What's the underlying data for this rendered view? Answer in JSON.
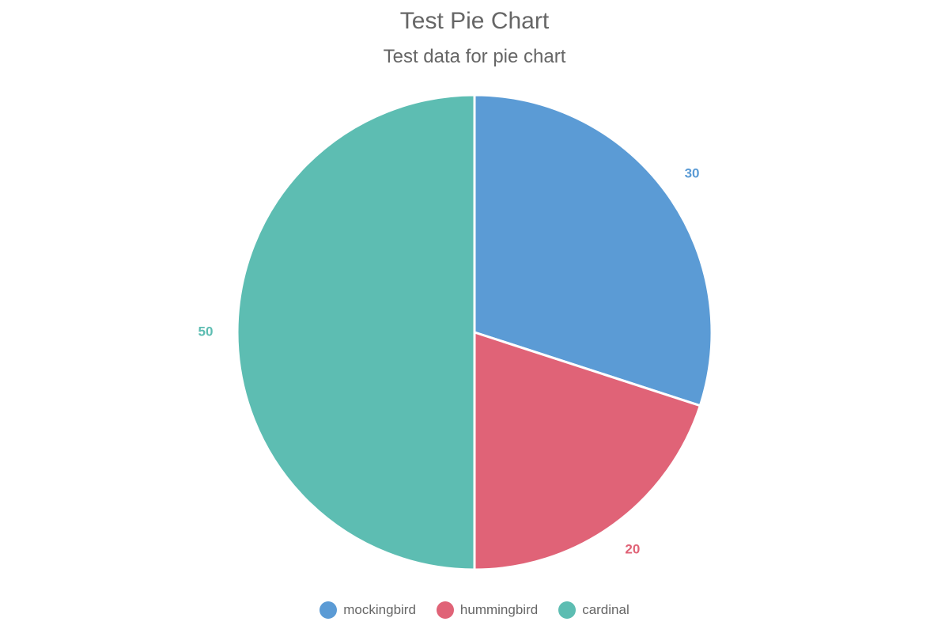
{
  "chart": {
    "type": "pie",
    "title": "Test Pie Chart",
    "title_fontsize": 30,
    "title_color": "#666666",
    "subtitle": "Test data for pie chart",
    "subtitle_fontsize": 24,
    "subtitle_color": "#666666",
    "background_color": "#ffffff",
    "pie_radius": 300,
    "slice_border_color": "#ffffff",
    "slice_border_width": 3,
    "start_angle_deg": 0,
    "direction": "clockwise",
    "slices": [
      {
        "label": "mockingbird",
        "value": 30,
        "color": "#5b9bd5",
        "value_text": "30"
      },
      {
        "label": "hummingbird",
        "value": 20,
        "color": "#e06377",
        "value_text": "20"
      },
      {
        "label": "cardinal",
        "value": 50,
        "color": "#5dbdb2",
        "value_text": "50"
      }
    ],
    "value_label_fontsize": 17,
    "value_label_offset": 40,
    "legend": {
      "position": "bottom",
      "fontsize": 17,
      "text_color": "#666666",
      "swatch_shape": "circle",
      "swatch_size": 22
    }
  }
}
